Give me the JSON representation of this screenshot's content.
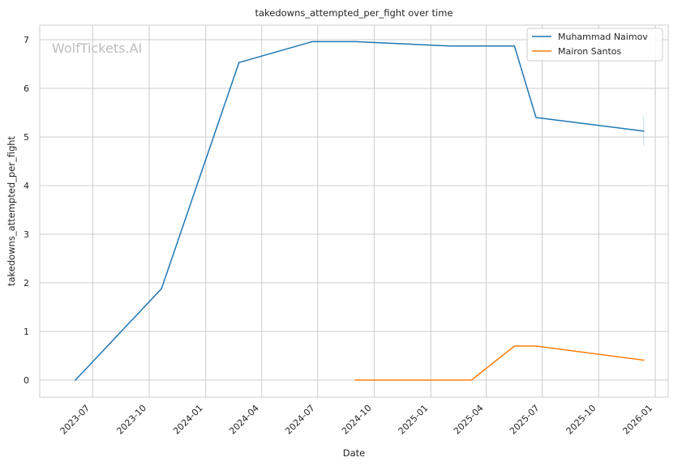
{
  "watermark": "WolfTickets.AI",
  "chart_data": {
    "type": "line",
    "title": "takedowns_attempted_per_fight over time",
    "xlabel": "Date",
    "ylabel": "takedowns_attempted_per_fight",
    "xlim": [
      "2023-04-06",
      "2026-01-22"
    ],
    "ylim": [
      -0.35,
      7.3
    ],
    "x_ticks": [
      "2023-07-01",
      "2023-10-01",
      "2024-01-01",
      "2024-04-01",
      "2024-07-01",
      "2024-10-01",
      "2025-01-01",
      "2025-04-01",
      "2025-07-01",
      "2025-10-01",
      "2026-01-01"
    ],
    "x_tick_labels": [
      "2023-07",
      "2023-10",
      "2024-01",
      "2024-04",
      "2024-07",
      "2024-10",
      "2025-01",
      "2025-04",
      "2025-07",
      "2025-10",
      "2026-01"
    ],
    "y_ticks": [
      0,
      1,
      2,
      3,
      4,
      5,
      6,
      7
    ],
    "y_tick_labels": [
      "0",
      "1",
      "2",
      "3",
      "4",
      "5",
      "6",
      "7"
    ],
    "grid": true,
    "legend_position": "top-right",
    "series": [
      {
        "name": "Muhammad Naimov",
        "color": "#1f77b4",
        "points": [
          {
            "x": "2023-06-03",
            "y": 0.0
          },
          {
            "x": "2023-10-21",
            "y": 1.88
          },
          {
            "x": "2024-02-24",
            "y": 6.53
          },
          {
            "x": "2024-06-22",
            "y": 6.96
          },
          {
            "x": "2024-08-31",
            "y": 6.96
          },
          {
            "x": "2025-02-01",
            "y": 6.87
          },
          {
            "x": "2025-05-17",
            "y": 6.87
          },
          {
            "x": "2025-06-21",
            "y": 5.4
          },
          {
            "x": "2025-12-13",
            "y": 5.12
          }
        ],
        "end_error": {
          "x": "2025-12-13",
          "low": 4.82,
          "high": 5.42
        }
      },
      {
        "name": "Mairon Santos",
        "color": "#ff7f0e",
        "points": [
          {
            "x": "2024-08-31",
            "y": 0.0
          },
          {
            "x": "2025-03-08",
            "y": 0.0
          },
          {
            "x": "2025-05-17",
            "y": 0.7
          },
          {
            "x": "2025-06-21",
            "y": 0.7
          },
          {
            "x": "2025-12-13",
            "y": 0.41
          }
        ]
      }
    ]
  }
}
